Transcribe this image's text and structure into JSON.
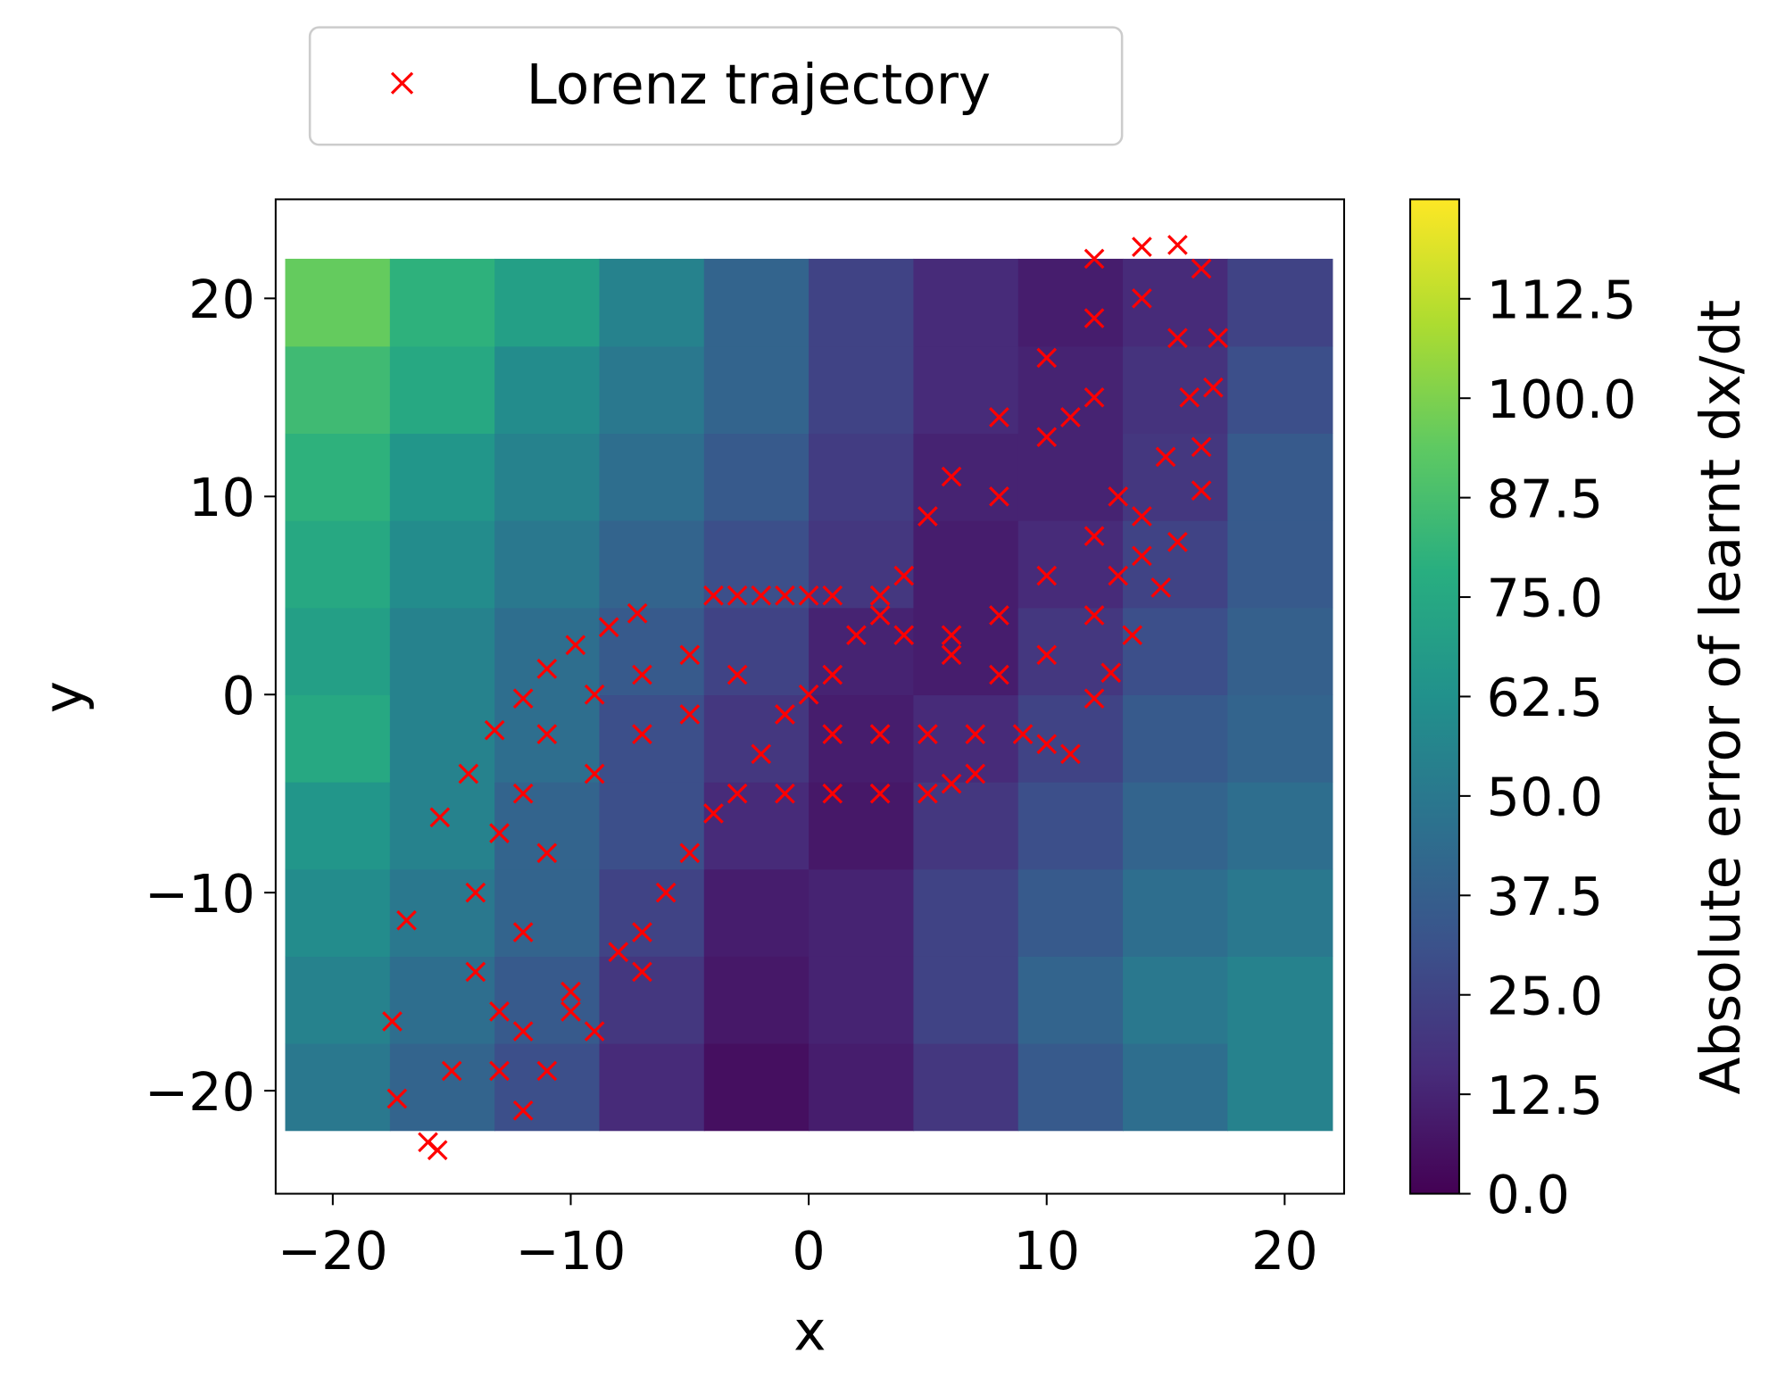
{
  "chart_data": {
    "type": "scatter",
    "xlabel": "x",
    "ylabel": "y",
    "xlim": [
      -22.4,
      22.5
    ],
    "ylim": [
      -25.2,
      25.0
    ],
    "xticks": [
      {
        "value": -20,
        "label": "−20"
      },
      {
        "value": -10,
        "label": "−10"
      },
      0,
      10,
      20
    ],
    "yticks": [
      {
        "value": -20,
        "label": "−20"
      },
      {
        "value": -10,
        "label": "−10"
      },
      0,
      10,
      20
    ],
    "legend_loc": "upper center",
    "colormap": "viridis",
    "colorbar_label": "Absolute error of learnt dx/dt",
    "clim": [
      0,
      125
    ],
    "cticks": [
      {
        "value": 0,
        "label": "0.0"
      },
      12.5,
      {
        "value": 25,
        "label": "25.0"
      },
      37.5,
      {
        "value": 50,
        "label": "50.0"
      },
      62.5,
      {
        "value": 75,
        "label": "75.0"
      },
      87.5,
      {
        "value": 100,
        "label": "100.0"
      },
      112.5
    ],
    "field": {
      "x_edges": [
        -22,
        -17.6,
        -13.2,
        -8.8,
        -4.4,
        0,
        4.4,
        8.8,
        13.2,
        17.6,
        22
      ],
      "y_edges": [
        -22,
        -17.6,
        -13.2,
        -8.8,
        -4.4,
        0,
        4.4,
        8.8,
        13.2,
        17.6,
        22
      ],
      "z": [
        [
          50,
          40,
          30,
          15,
          5,
          10,
          20,
          35,
          45,
          55
        ],
        [
          55,
          45,
          35,
          20,
          8,
          12,
          25,
          40,
          50,
          55
        ],
        [
          60,
          50,
          40,
          25,
          10,
          12,
          25,
          35,
          45,
          50
        ],
        [
          65,
          55,
          40,
          30,
          15,
          8,
          20,
          30,
          40,
          45
        ],
        [
          75,
          55,
          45,
          30,
          20,
          10,
          15,
          25,
          35,
          40
        ],
        [
          70,
          55,
          45,
          35,
          25,
          12,
          10,
          20,
          30,
          38
        ],
        [
          75,
          60,
          50,
          40,
          30,
          20,
          10,
          15,
          25,
          35
        ],
        [
          80,
          65,
          55,
          45,
          35,
          22,
          12,
          12,
          20,
          35
        ],
        [
          85,
          75,
          60,
          50,
          40,
          25,
          15,
          12,
          18,
          30
        ],
        [
          95,
          80,
          70,
          55,
          40,
          25,
          15,
          10,
          15,
          25
        ]
      ]
    },
    "series": [
      {
        "name": "Lorenz trajectory",
        "color": "#ff0000",
        "marker": "x",
        "x": [
          -10,
          -8,
          -6,
          -4,
          -2,
          0,
          2,
          4,
          5,
          3,
          -3,
          -5,
          -7,
          1,
          -1,
          3,
          -15,
          -14,
          -14,
          -13,
          -12,
          -11,
          -9,
          -7,
          -5,
          -3,
          -1,
          -13,
          -11,
          -9,
          -7,
          -13,
          -12,
          -11,
          -9,
          -7,
          -5,
          -12,
          -10,
          -17.5,
          -17.3,
          -16,
          -15.6,
          -12,
          -16.9,
          -15.5,
          -14.3,
          -13.2,
          -12,
          -11,
          -9.8,
          -8.4,
          -7.2,
          6,
          8,
          10,
          12,
          14,
          15.5,
          16,
          15,
          14,
          13,
          12,
          10,
          8,
          6,
          4,
          12,
          10,
          8,
          11,
          13,
          14,
          12,
          10,
          8,
          6,
          12,
          14,
          15.5,
          16.5,
          17.2,
          17,
          16.5,
          16.5,
          15.5,
          14.8,
          13.6,
          12.7,
          12,
          -4,
          -3,
          -2,
          -1,
          0,
          1,
          1,
          3,
          5,
          7,
          9,
          10,
          11,
          -1,
          1,
          3,
          5,
          6,
          7
        ],
        "y": [
          -16,
          -13,
          -10,
          -6,
          -3,
          0,
          3,
          6,
          9,
          4,
          -5,
          -8,
          -12,
          1,
          -1,
          5,
          -19,
          -14,
          -10,
          -7,
          -5,
          -2,
          0,
          1,
          2,
          1,
          -1,
          -19,
          -19,
          -17,
          -14,
          -16,
          -12,
          -8,
          -4,
          -2,
          -1,
          -17,
          -15,
          -16.5,
          -20.4,
          -22.6,
          -23,
          -21,
          -11.4,
          -6.2,
          -4,
          -1.8,
          -0.2,
          1.3,
          2.5,
          3.4,
          4.1,
          11,
          14,
          17,
          19,
          20,
          18,
          15,
          12,
          9,
          6,
          4,
          2,
          1,
          2,
          3,
          15,
          13,
          10,
          14,
          10,
          7,
          8,
          6,
          4,
          3,
          22,
          22.6,
          22.7,
          21.5,
          18,
          15.5,
          12.5,
          10.3,
          7.7,
          5.4,
          3,
          1.1,
          -0.2,
          5,
          5,
          5,
          5,
          5,
          5,
          -2,
          -2,
          -2,
          -2,
          -2,
          -2.5,
          -3,
          -5,
          -5,
          -5,
          -5,
          -4.5,
          -4
        ]
      }
    ]
  }
}
